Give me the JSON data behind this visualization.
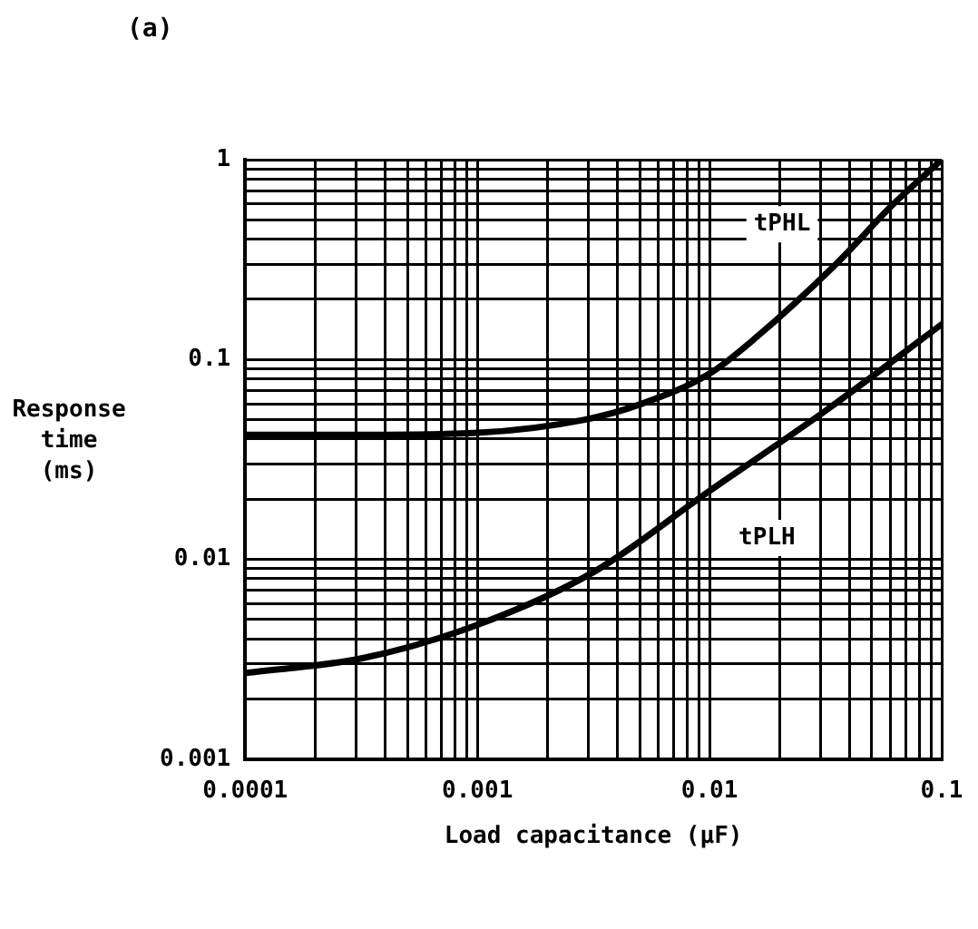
{
  "chart_data": {
    "type": "line",
    "title": "(a)",
    "xlabel": "Load capacitance (μF)",
    "ylabel": "Response time (ms)",
    "log": "xy",
    "grid": true,
    "legend": false,
    "marker": "none",
    "line_style": "solid",
    "xlim": [
      0.0001,
      0.1
    ],
    "xticks": [
      0.0001,
      0.001,
      0.01,
      0.1
    ],
    "ylim": [
      0.001,
      1
    ],
    "yticks": [
      0.001,
      0.01,
      0.1,
      1
    ],
    "series": [
      {
        "name": "tPHL",
        "color": "#000000",
        "x": [
          0.0001,
          0.0003,
          0.001,
          0.0029,
          0.0051,
          0.01,
          0.016,
          0.035,
          0.062,
          0.1
        ],
        "values": [
          0.042,
          0.042,
          0.043,
          0.05,
          0.06,
          0.085,
          0.13,
          0.3,
          0.6,
          1
        ]
      },
      {
        "name": "tPLH",
        "color": "#000000",
        "x": [
          0.0001,
          0.00032,
          0.001,
          0.0032,
          0.01,
          0.032,
          0.1
        ],
        "values": [
          0.0027,
          0.0032,
          0.0047,
          0.0087,
          0.022,
          0.056,
          0.15
        ]
      }
    ]
  }
}
